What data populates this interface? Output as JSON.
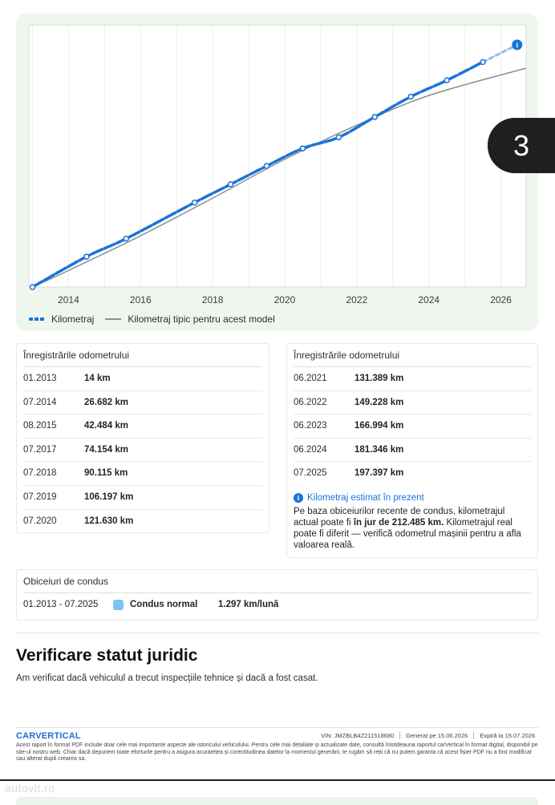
{
  "page_badge": "3",
  "chart_data": {
    "type": "line",
    "x_ticks": [
      "2014",
      "2016",
      "2018",
      "2020",
      "2022",
      "2024",
      "2026"
    ],
    "xlim": [
      2012.9,
      2026.7
    ],
    "ylim": [
      0,
      230000
    ],
    "legend_placement": "bottom-left",
    "series": [
      {
        "name": "Kilometraj",
        "style": "dashed-dots",
        "color": "#1a73d9",
        "points": [
          {
            "x": 2013.0,
            "y": 14
          },
          {
            "x": 2014.5,
            "y": 26682
          },
          {
            "x": 2015.6,
            "y": 42484
          },
          {
            "x": 2017.5,
            "y": 74154
          },
          {
            "x": 2018.5,
            "y": 90115
          },
          {
            "x": 2019.5,
            "y": 106197
          },
          {
            "x": 2020.5,
            "y": 121630
          },
          {
            "x": 2021.5,
            "y": 131389
          },
          {
            "x": 2022.5,
            "y": 149228
          },
          {
            "x": 2023.5,
            "y": 166994
          },
          {
            "x": 2024.5,
            "y": 181346
          },
          {
            "x": 2025.5,
            "y": 197397
          }
        ],
        "estimate": {
          "x": 2026.45,
          "y": 212485
        }
      },
      {
        "name": "Kilometraj tipic pentru acest model",
        "style": "solid",
        "color": "#8a8f94",
        "points": [
          {
            "x": 2013.0,
            "y": 0
          },
          {
            "x": 2014.0,
            "y": 14500
          },
          {
            "x": 2016.0,
            "y": 45000
          },
          {
            "x": 2018.0,
            "y": 78000
          },
          {
            "x": 2020.0,
            "y": 112000
          },
          {
            "x": 2022.0,
            "y": 142000
          },
          {
            "x": 2024.0,
            "y": 168000
          },
          {
            "x": 2026.7,
            "y": 192000
          }
        ]
      }
    ]
  },
  "odometer_left": {
    "title": "Înregistrările odometrului",
    "rows": [
      {
        "date": "01.2013",
        "km": "14 km"
      },
      {
        "date": "07.2014",
        "km": "26.682 km"
      },
      {
        "date": "08.2015",
        "km": "42.484 km"
      },
      {
        "date": "07.2017",
        "km": "74.154 km"
      },
      {
        "date": "07.2018",
        "km": "90.115 km"
      },
      {
        "date": "07.2019",
        "km": "106.197 km"
      },
      {
        "date": "07.2020",
        "km": "121.630 km"
      }
    ]
  },
  "odometer_right": {
    "title": "Înregistrările odometrului",
    "rows": [
      {
        "date": "06.2021",
        "km": "131.389 km"
      },
      {
        "date": "06.2022",
        "km": "149.228 km"
      },
      {
        "date": "06.2023",
        "km": "166.994 km"
      },
      {
        "date": "06.2024",
        "km": "181.346 km"
      },
      {
        "date": "07.2025",
        "km": "197.397 km"
      }
    ],
    "estimate_title": "Kilometraj estimat în prezent",
    "estimate_text_1": "Pe baza obiceiurilor recente de condus, kilometrajul actual poate fi ",
    "estimate_bold": "în jur de 212.485 km.",
    "estimate_text_2": " Kilometrajul real poate fi diferit — verifică odometrul mașinii pentru a afla valoarea reală."
  },
  "driving_habits": {
    "title": "Obiceiuri de condus",
    "period": "01.2013 - 07.2025",
    "label": "Condus normal",
    "rate": "1.297 km/lună",
    "swatch_color": "#7ec3f2"
  },
  "legal": {
    "title": "Verificare statut juridic",
    "description": "Am verificat dacă vehiculul a trecut inspecțiile tehnice și dacă a fost casat."
  },
  "footer": {
    "logo": "CARVERTICAL",
    "vin": "VIN: JMZBLB4Z211518680",
    "generated": "Generat pe 15.06.2026",
    "expires": "Expiră la 15.07.2026",
    "note": "Acest raport în format PDF include doar cele mai importante aspecte ale istoricului vehiculului. Pentru cele mai detaliate și actualizate date, consultă întotdeauna raportul carVertical în format digital, disponibil pe site-ul nostru web. Chiar dacă depunem toate eforturile pentru a asigura acuratețea și corectitudinea datelor la momentul generării, te rugăm să reții că nu putem garanta că acest fișier PDF nu a fost modificat sau alterat după crearea sa."
  },
  "watermark": "autovit.ro"
}
